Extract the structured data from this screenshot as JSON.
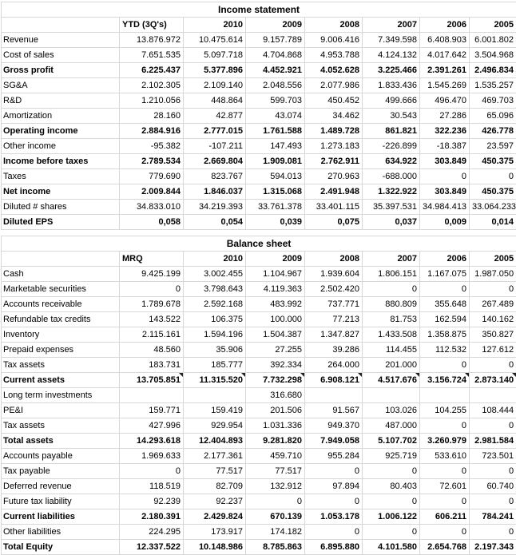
{
  "colors": {
    "background": "#ffffff",
    "gridline": "#d8d8d8",
    "text": "#000000",
    "comment_marker": "#222222"
  },
  "chart_data": [
    {
      "type": "table",
      "title": "Income statement",
      "columns": [
        "",
        "YTD (3Q's)",
        "2010",
        "2009",
        "2008",
        "2007",
        "2006",
        "2005"
      ],
      "rows": [
        {
          "label": "Revenue",
          "bold": false,
          "values": [
            "13.876.972",
            "10.475.614",
            "9.157.789",
            "9.006.416",
            "7.349.598",
            "6.408.903",
            "6.001.802"
          ]
        },
        {
          "label": "Cost of sales",
          "bold": false,
          "values": [
            "7.651.535",
            "5.097.718",
            "4.704.868",
            "4.953.788",
            "4.124.132",
            "4.017.642",
            "3.504.968"
          ]
        },
        {
          "label": "Gross profit",
          "bold": true,
          "values": [
            "6.225.437",
            "5.377.896",
            "4.452.921",
            "4.052.628",
            "3.225.466",
            "2.391.261",
            "2.496.834"
          ]
        },
        {
          "label": "SG&A",
          "bold": false,
          "values": [
            "2.102.305",
            "2.109.140",
            "2.048.556",
            "2.077.986",
            "1.833.436",
            "1.545.269",
            "1.535.257"
          ]
        },
        {
          "label": "R&D",
          "bold": false,
          "values": [
            "1.210.056",
            "448.864",
            "599.703",
            "450.452",
            "499.666",
            "496.470",
            "469.703"
          ]
        },
        {
          "label": "Amortization",
          "bold": false,
          "values": [
            "28.160",
            "42.877",
            "43.074",
            "34.462",
            "30.543",
            "27.286",
            "65.096"
          ]
        },
        {
          "label": "Operating income",
          "bold": true,
          "values": [
            "2.884.916",
            "2.777.015",
            "1.761.588",
            "1.489.728",
            "861.821",
            "322.236",
            "426.778"
          ]
        },
        {
          "label": "Other income",
          "bold": false,
          "values": [
            "-95.382",
            "-107.211",
            "147.493",
            "1.273.183",
            "-226.899",
            "-18.387",
            "23.597"
          ]
        },
        {
          "label": "Income before taxes",
          "bold": true,
          "values": [
            "2.789.534",
            "2.669.804",
            "1.909.081",
            "2.762.911",
            "634.922",
            "303.849",
            "450.375"
          ]
        },
        {
          "label": "Taxes",
          "bold": false,
          "values": [
            "779.690",
            "823.767",
            "594.013",
            "270.963",
            "-688.000",
            "0",
            "0"
          ]
        },
        {
          "label": "Net income",
          "bold": true,
          "values": [
            "2.009.844",
            "1.846.037",
            "1.315.068",
            "2.491.948",
            "1.322.922",
            "303.849",
            "450.375"
          ]
        },
        {
          "label": "Diluted # shares",
          "bold": false,
          "values": [
            "34.833.010",
            "34.219.393",
            "33.761.378",
            "33.401.115",
            "35.397.531",
            "34.984.413",
            "33.064.233"
          ]
        },
        {
          "label": "Diluted EPS",
          "bold": true,
          "values": [
            "0,058",
            "0,054",
            "0,039",
            "0,075",
            "0,037",
            "0,009",
            "0,014"
          ]
        }
      ]
    },
    {
      "type": "table",
      "title": "Balance sheet",
      "columns": [
        "",
        "MRQ",
        "2010",
        "2009",
        "2008",
        "2007",
        "2006",
        "2005"
      ],
      "rows": [
        {
          "label": "Cash",
          "bold": false,
          "values": [
            "9.425.199",
            "3.002.455",
            "1.104.967",
            "1.939.604",
            "1.806.151",
            "1.167.075",
            "1.987.050"
          ]
        },
        {
          "label": "Marketable securities",
          "bold": false,
          "values": [
            "0",
            "3.798.643",
            "4.119.363",
            "2.502.420",
            "0",
            "0",
            "0"
          ]
        },
        {
          "label": "Accounts receivable",
          "bold": false,
          "values": [
            "1.789.678",
            "2.592.168",
            "483.992",
            "737.771",
            "880.809",
            "355.648",
            "267.489"
          ]
        },
        {
          "label": "Refundable tax credits",
          "bold": false,
          "values": [
            "143.522",
            "106.375",
            "100.000",
            "77.213",
            "81.753",
            "162.594",
            "140.162"
          ]
        },
        {
          "label": "Inventory",
          "bold": false,
          "values": [
            "2.115.161",
            "1.594.196",
            "1.504.387",
            "1.347.827",
            "1.433.508",
            "1.358.875",
            "350.827"
          ]
        },
        {
          "label": "Prepaid expenses",
          "bold": false,
          "values": [
            "48.560",
            "35.906",
            "27.255",
            "39.286",
            "114.455",
            "112.532",
            "127.612"
          ]
        },
        {
          "label": "Tax assets",
          "bold": false,
          "values": [
            "183.731",
            "185.777",
            "392.334",
            "264.000",
            "201.000",
            "0",
            "0"
          ]
        },
        {
          "label": "Current assets",
          "bold": true,
          "markers": true,
          "values": [
            "13.705.851",
            "11.315.520",
            "7.732.298",
            "6.908.121",
            "4.517.676",
            "3.156.724",
            "2.873.140"
          ]
        },
        {
          "label": "Long term investments",
          "bold": false,
          "values": [
            "",
            "",
            "316.680",
            "",
            "",
            "",
            ""
          ]
        },
        {
          "label": "PE&I",
          "bold": false,
          "values": [
            "159.771",
            "159.419",
            "201.506",
            "91.567",
            "103.026",
            "104.255",
            "108.444"
          ]
        },
        {
          "label": "Tax assets",
          "bold": false,
          "values": [
            "427.996",
            "929.954",
            "1.031.336",
            "949.370",
            "487.000",
            "0",
            "0"
          ]
        },
        {
          "label": "Total assets",
          "bold": true,
          "values": [
            "14.293.618",
            "12.404.893",
            "9.281.820",
            "7.949.058",
            "5.107.702",
            "3.260.979",
            "2.981.584"
          ]
        },
        {
          "label": "Accounts payable",
          "bold": false,
          "values": [
            "1.969.633",
            "2.177.361",
            "459.710",
            "955.284",
            "925.719",
            "533.610",
            "723.501"
          ]
        },
        {
          "label": "Tax payable",
          "bold": false,
          "values": [
            "0",
            "77.517",
            "77.517",
            "0",
            "0",
            "0",
            "0"
          ]
        },
        {
          "label": "Deferred revenue",
          "bold": false,
          "values": [
            "118.519",
            "82.709",
            "132.912",
            "97.894",
            "80.403",
            "72.601",
            "60.740"
          ]
        },
        {
          "label": "Future tax liability",
          "bold": false,
          "values": [
            "92.239",
            "92.237",
            "0",
            "0",
            "0",
            "0",
            "0"
          ]
        },
        {
          "label": "Current liabilities",
          "bold": true,
          "values": [
            "2.180.391",
            "2.429.824",
            "670.139",
            "1.053.178",
            "1.006.122",
            "606.211",
            "784.241"
          ]
        },
        {
          "label": "Other liabilities",
          "bold": false,
          "values": [
            "224.295",
            "173.917",
            "174.182",
            "0",
            "0",
            "0",
            "0"
          ]
        },
        {
          "label": "Total Equity",
          "bold": true,
          "values": [
            "12.337.522",
            "10.148.986",
            "8.785.863",
            "6.895.880",
            "4.101.580",
            "2.654.768",
            "2.197.343"
          ]
        }
      ]
    }
  ]
}
